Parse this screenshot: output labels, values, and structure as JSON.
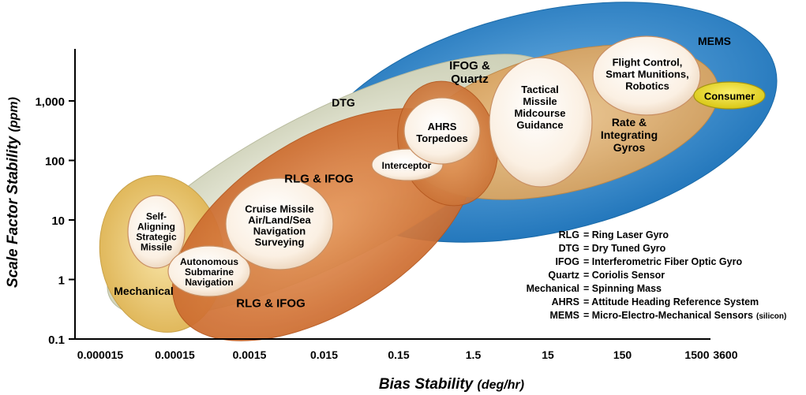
{
  "chart_data": {
    "type": "bubble-region",
    "xlabel": "Bias Stability",
    "xlabel_unit": "(deg/hr)",
    "ylabel": "Scale Factor Stability",
    "ylabel_unit": "(ppm)",
    "x_scale": "log",
    "y_scale": "log",
    "x_ticks": [
      {
        "value": 1.5e-05,
        "label": "0.000015"
      },
      {
        "value": 0.00015,
        "label": "0.00015"
      },
      {
        "value": 0.0015,
        "label": "0.0015"
      },
      {
        "value": 0.015,
        "label": "0.015"
      },
      {
        "value": 0.15,
        "label": "0.15"
      },
      {
        "value": 1.5,
        "label": "1.5"
      },
      {
        "value": 15,
        "label": "15"
      },
      {
        "value": 150,
        "label": "150"
      },
      {
        "value": 1500,
        "label": "1500"
      },
      {
        "value": 3600,
        "label": "3600"
      }
    ],
    "y_ticks": [
      {
        "value": 0.1,
        "label": "0.1"
      },
      {
        "value": 1,
        "label": "1"
      },
      {
        "value": 10,
        "label": "10"
      },
      {
        "value": 100,
        "label": "100"
      },
      {
        "value": 1000,
        "label": "1,000"
      }
    ],
    "regions": [
      {
        "name": "MEMS",
        "color": "#2f86c8"
      },
      {
        "name": "DTG",
        "color": "#d9dcc4"
      },
      {
        "name": "Mechanical",
        "color": "#e9c46a"
      },
      {
        "name": "RLG & IFOG",
        "color": "#cc6a2c"
      },
      {
        "name": "IFOG & Quartz",
        "color": "#d6a25c"
      },
      {
        "name": "Rate & Integrating Gyros",
        "color": "#dba868"
      }
    ],
    "region_labels": [
      {
        "lines": [
          "MEMS"
        ]
      },
      {
        "lines": [
          "DTG"
        ]
      },
      {
        "lines": [
          "Mechanical"
        ]
      },
      {
        "lines": [
          "RLG & IFOG"
        ]
      },
      {
        "lines": [
          "RLG & IFOG"
        ]
      },
      {
        "lines": [
          "IFOG &",
          "Quartz"
        ]
      },
      {
        "lines": [
          "Rate &",
          "Integrating",
          "Gyros"
        ]
      }
    ],
    "applications": [
      {
        "lines": [
          "Self-",
          "Aligning",
          "Strategic",
          "Missile"
        ]
      },
      {
        "lines": [
          "Autonomous",
          "Submarine",
          "Navigation"
        ]
      },
      {
        "lines": [
          "Cruise Missile",
          "Air/Land/Sea",
          "Navigation",
          "Surveying"
        ]
      },
      {
        "lines": [
          "Interceptor"
        ]
      },
      {
        "lines": [
          "AHRS",
          "Torpedoes"
        ]
      },
      {
        "lines": [
          "Tactical",
          "Missile",
          "Midcourse",
          "Guidance"
        ]
      },
      {
        "lines": [
          "Flight Control,",
          "Smart Munitions,",
          "Robotics"
        ]
      },
      {
        "lines": [
          "Consumer"
        ]
      }
    ],
    "legend": [
      {
        "abbr": "RLG",
        "meaning": "= Ring Laser Gyro"
      },
      {
        "abbr": "DTG",
        "meaning": "= Dry Tuned Gyro"
      },
      {
        "abbr": "IFOG",
        "meaning": "= Interferometric Fiber Optic Gyro"
      },
      {
        "abbr": "Quartz",
        "meaning": "= Coriolis Sensor"
      },
      {
        "abbr": "Mechanical",
        "meaning": "= Spinning Mass"
      },
      {
        "abbr": "AHRS",
        "meaning": "= Attitude Heading Reference System"
      },
      {
        "abbr": "MEMS",
        "meaning": "= Micro-Electro-Mechanical Sensors",
        "note": "(silicon)"
      }
    ]
  }
}
